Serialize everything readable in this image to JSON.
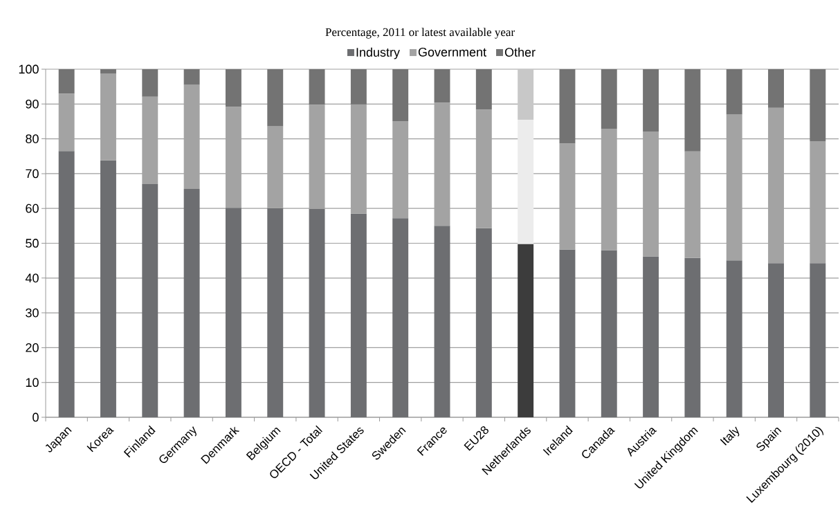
{
  "chart_data": {
    "type": "bar",
    "stacked": true,
    "title": "Percentage, 2011 or latest available year",
    "categories": [
      "Japan",
      "Korea",
      "Finland",
      "Germany",
      "Denmark",
      "Belgium",
      "OECD - Total",
      "United States",
      "Sweden",
      "France",
      "EU28",
      "Netherlands",
      "Ireland",
      "Canada",
      "Austria",
      "United Kingdom",
      "Italy",
      "Spain",
      "Luxembourg (2010)"
    ],
    "series": [
      {
        "name": "Industry",
        "color": "#6d6e71",
        "colors": [
          "#6d6e71",
          "#6d6e71",
          "#6d6e71",
          "#6d6e71",
          "#6d6e71",
          "#6d6e71",
          "#6d6e71",
          "#6d6e71",
          "#6d6e71",
          "#6d6e71",
          "#6d6e71",
          "#3c3c3c",
          "#6d6e71",
          "#6d6e71",
          "#6d6e71",
          "#6d6e71",
          "#6d6e71",
          "#6d6e71",
          "#6d6e71"
        ],
        "values": [
          76.5,
          73.8,
          67,
          65.6,
          60.2,
          60.1,
          59.9,
          58.5,
          57.2,
          55,
          54.3,
          49.8,
          48.2,
          48,
          46.2,
          45.8,
          45.1,
          44.3,
          44.3
        ]
      },
      {
        "name": "Government",
        "color": "#a3a3a3",
        "colors": [
          "#a3a3a3",
          "#a3a3a3",
          "#a3a3a3",
          "#a3a3a3",
          "#a3a3a3",
          "#a3a3a3",
          "#a3a3a3",
          "#a3a3a3",
          "#a3a3a3",
          "#a3a3a3",
          "#a3a3a3",
          "#ececec",
          "#a3a3a3",
          "#a3a3a3",
          "#a3a3a3",
          "#a3a3a3",
          "#a3a3a3",
          "#a3a3a3",
          "#a3a3a3"
        ],
        "values": [
          16.5,
          24.9,
          25.1,
          29.9,
          29,
          23.5,
          29.9,
          31.4,
          27.9,
          35.4,
          34.1,
          35.7,
          30.5,
          34.9,
          35.9,
          30.6,
          41.9,
          44.6,
          35
        ]
      },
      {
        "name": "Other",
        "color": "#737373",
        "colors": [
          "#737373",
          "#737373",
          "#737373",
          "#737373",
          "#737373",
          "#737373",
          "#737373",
          "#737373",
          "#737373",
          "#737373",
          "#737373",
          "#c8c8c8",
          "#737373",
          "#737373",
          "#737373",
          "#737373",
          "#737373",
          "#737373",
          "#737373"
        ],
        "values": [
          7,
          1.3,
          7.9,
          4.5,
          10.8,
          16.4,
          10.2,
          10.1,
          14.9,
          9.6,
          11.6,
          14.5,
          21.3,
          17.1,
          17.9,
          23.6,
          13,
          11.1,
          20.7
        ]
      }
    ],
    "ylim": [
      0,
      100
    ],
    "yticks": [
      0,
      10,
      20,
      30,
      40,
      50,
      60,
      70,
      80,
      90,
      100
    ],
    "grid": "y",
    "legend": "top"
  }
}
